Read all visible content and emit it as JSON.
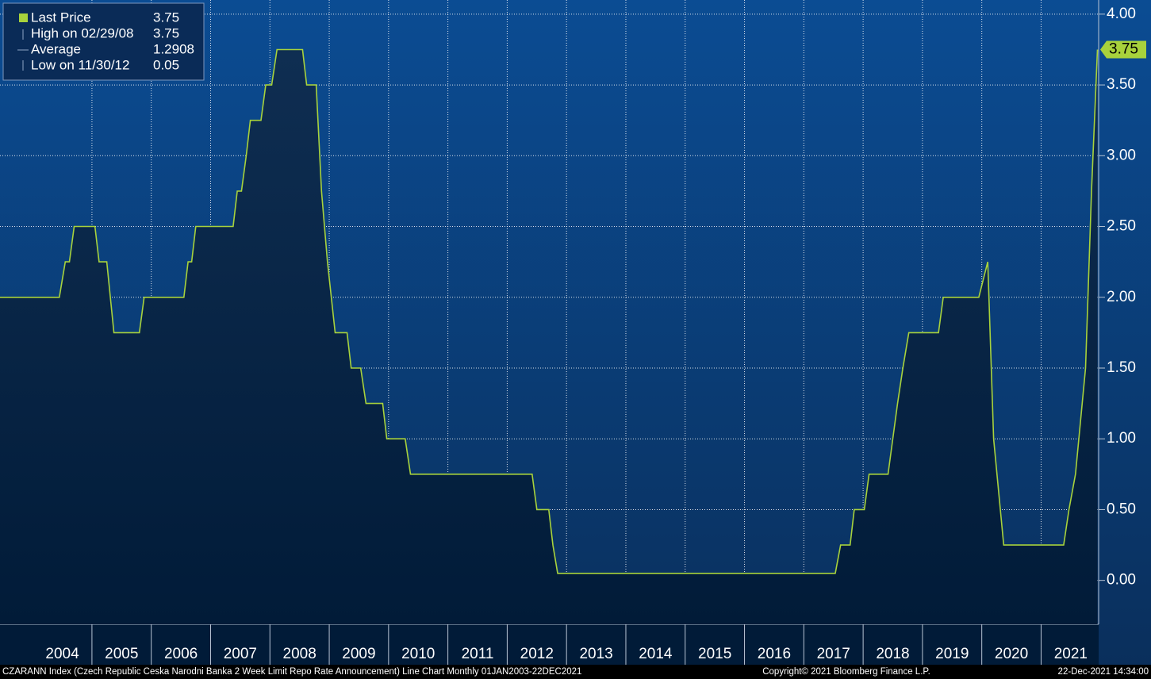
{
  "chart_data": {
    "type": "line",
    "x": [
      2003.45,
      2004.45,
      2004.55,
      2004.62,
      2004.7,
      2005.05,
      2005.12,
      2005.25,
      2005.37,
      2005.8,
      2005.88,
      2006.55,
      2006.62,
      2006.68,
      2006.75,
      2007.38,
      2007.45,
      2007.52,
      2007.6,
      2007.67,
      2007.85,
      2007.93,
      2008.03,
      2008.12,
      2008.55,
      2008.62,
      2008.78,
      2008.87,
      2008.97,
      2009.1,
      2009.3,
      2009.37,
      2009.53,
      2009.62,
      2009.9,
      2009.97,
      2010.28,
      2010.37,
      2012.42,
      2012.5,
      2012.7,
      2012.77,
      2012.85,
      2017.53,
      2017.62,
      2017.78,
      2017.85,
      2018.02,
      2018.1,
      2018.42,
      2018.5,
      2018.58,
      2018.67,
      2018.77,
      2019.27,
      2019.35,
      2019.95,
      2020.1,
      2020.2,
      2020.37,
      2021.38,
      2021.47,
      2021.58,
      2021.75,
      2021.85,
      2021.95
    ],
    "series": [
      {
        "name": "Last Price",
        "color": "#a8d23c",
        "values": [
          2.0,
          2.0,
          2.25,
          2.25,
          2.5,
          2.5,
          2.25,
          2.25,
          1.75,
          1.75,
          2.0,
          2.0,
          2.25,
          2.25,
          2.5,
          2.5,
          2.75,
          2.75,
          3.0,
          3.25,
          3.25,
          3.5,
          3.5,
          3.75,
          3.75,
          3.5,
          3.5,
          2.75,
          2.25,
          1.75,
          1.75,
          1.5,
          1.5,
          1.25,
          1.25,
          1.0,
          1.0,
          0.75,
          0.75,
          0.5,
          0.5,
          0.25,
          0.05,
          0.05,
          0.25,
          0.25,
          0.5,
          0.5,
          0.75,
          0.75,
          1.0,
          1.25,
          1.5,
          1.75,
          1.75,
          2.0,
          2.0,
          2.25,
          1.0,
          0.25,
          0.25,
          0.5,
          0.75,
          1.5,
          2.75,
          3.75
        ]
      }
    ],
    "xlim": [
      2003.45,
      2021.97
    ],
    "xticks": [
      {
        "value": 2004.5,
        "label": "2004"
      },
      {
        "value": 2005.5,
        "label": "2005"
      },
      {
        "value": 2006.5,
        "label": "2006"
      },
      {
        "value": 2007.5,
        "label": "2007"
      },
      {
        "value": 2008.5,
        "label": "2008"
      },
      {
        "value": 2009.5,
        "label": "2009"
      },
      {
        "value": 2010.5,
        "label": "2010"
      },
      {
        "value": 2011.5,
        "label": "2011"
      },
      {
        "value": 2012.5,
        "label": "2012"
      },
      {
        "value": 2013.5,
        "label": "2013"
      },
      {
        "value": 2014.5,
        "label": "2014"
      },
      {
        "value": 2015.5,
        "label": "2015"
      },
      {
        "value": 2016.5,
        "label": "2016"
      },
      {
        "value": 2017.5,
        "label": "2017"
      },
      {
        "value": 2018.5,
        "label": "2018"
      },
      {
        "value": 2019.5,
        "label": "2019"
      },
      {
        "value": 2020.5,
        "label": "2020"
      },
      {
        "value": 2021.5,
        "label": "2021"
      }
    ],
    "ylim": [
      -0.31,
      4.1
    ],
    "yticks": [
      {
        "value": 0,
        "label": "0.00"
      },
      {
        "value": 0.5,
        "label": "0.50"
      },
      {
        "value": 1,
        "label": "1.00"
      },
      {
        "value": 1.5,
        "label": "1.50"
      },
      {
        "value": 2,
        "label": "2.00"
      },
      {
        "value": 2.5,
        "label": "2.50"
      },
      {
        "value": 3,
        "label": "3.00"
      },
      {
        "value": 3.5,
        "label": "3.50"
      },
      {
        "value": 4,
        "label": "4.00"
      }
    ],
    "grid": true,
    "legend": {
      "position": "top-left",
      "entries": [
        {
          "label": "Last Price",
          "value": 3.75
        },
        {
          "label": "High on 02/29/08",
          "value": 3.75
        },
        {
          "label": "Average",
          "value": 1.2908
        },
        {
          "label": "Low on 11/30/12",
          "value": 0.05
        }
      ]
    }
  },
  "footer": {
    "left": "CZARANN Index (Czech Republic Ceska Narodni Banka 2 Week Limit Repo Rate Announcement) Line Chart  Monthly 01JAN2003-22DEC2021",
    "center": "Copyright© 2021 Bloomberg Finance L.P.",
    "right": "22-Dec-2021 14:34:00"
  }
}
